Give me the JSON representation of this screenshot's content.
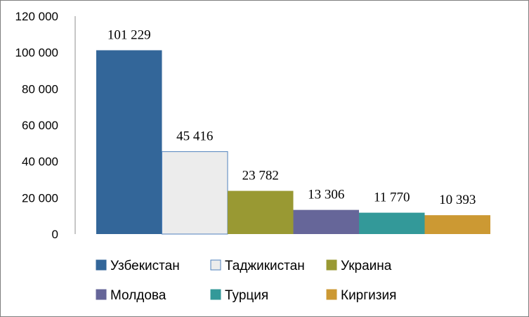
{
  "chart_data": {
    "type": "bar",
    "title": "",
    "xlabel": "",
    "ylabel": "",
    "ylim": [
      0,
      120000
    ],
    "yticks": [
      0,
      20000,
      40000,
      60000,
      80000,
      100000,
      120000
    ],
    "ytick_labels": [
      "0",
      "20 000",
      "40 000",
      "60 000",
      "80 000",
      "100 000",
      "120 000"
    ],
    "grid": false,
    "legend_position": "bottom",
    "series": [
      {
        "name": "Узбекистан",
        "value": 101229,
        "label": "101 229",
        "color": "#336699"
      },
      {
        "name": "Таджикистан",
        "value": 45416,
        "label": "45 416",
        "color": "#ececec"
      },
      {
        "name": "Украина",
        "value": 23782,
        "label": "23 782",
        "color": "#999933"
      },
      {
        "name": "Молдова",
        "value": 13306,
        "label": "13 306",
        "color": "#666699"
      },
      {
        "name": "Турция",
        "value": 11770,
        "label": "11 770",
        "color": "#339999"
      },
      {
        "name": "Киргизия",
        "value": 10393,
        "label": "10 393",
        "color": "#cc9933"
      }
    ]
  }
}
